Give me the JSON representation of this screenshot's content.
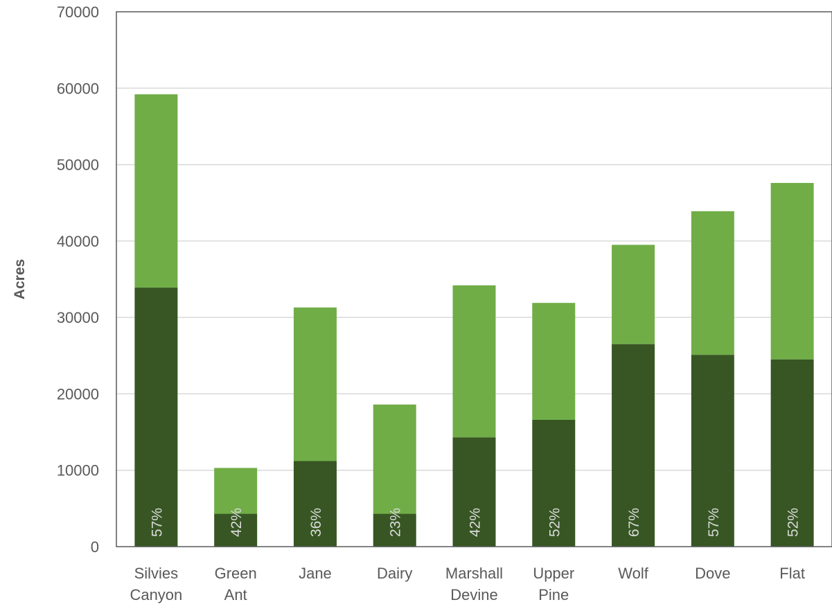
{
  "chart_data": {
    "type": "bar",
    "stacked": true,
    "ylabel": "Acres",
    "ylim": [
      0,
      70000
    ],
    "yticks": [
      0,
      10000,
      20000,
      30000,
      40000,
      50000,
      60000,
      70000
    ],
    "grid": true,
    "categories": [
      [
        "Silvies",
        "Canyon"
      ],
      [
        "Green",
        "Ant"
      ],
      [
        "Jane"
      ],
      [
        "Dairy"
      ],
      [
        "Marshall",
        "Devine"
      ],
      [
        "Upper",
        "Pine"
      ],
      [
        "Wolf"
      ],
      [
        "Dove"
      ],
      [
        "Flat"
      ]
    ],
    "series": [
      {
        "values": [
          33900,
          4300,
          11200,
          4300,
          14300,
          16600,
          26500,
          25100,
          24500
        ]
      },
      {
        "values": [
          25300,
          6000,
          20100,
          14300,
          19900,
          15300,
          13000,
          18800,
          23100
        ]
      }
    ],
    "percent_labels": [
      "57%",
      "42%",
      "36%",
      "23%",
      "42%",
      "52%",
      "67%",
      "57%",
      "52%"
    ],
    "colors": {
      "series_dark": "#375623",
      "series_light": "#70ad47",
      "gridline": "#d9d9d9",
      "frame": "#595959"
    }
  }
}
